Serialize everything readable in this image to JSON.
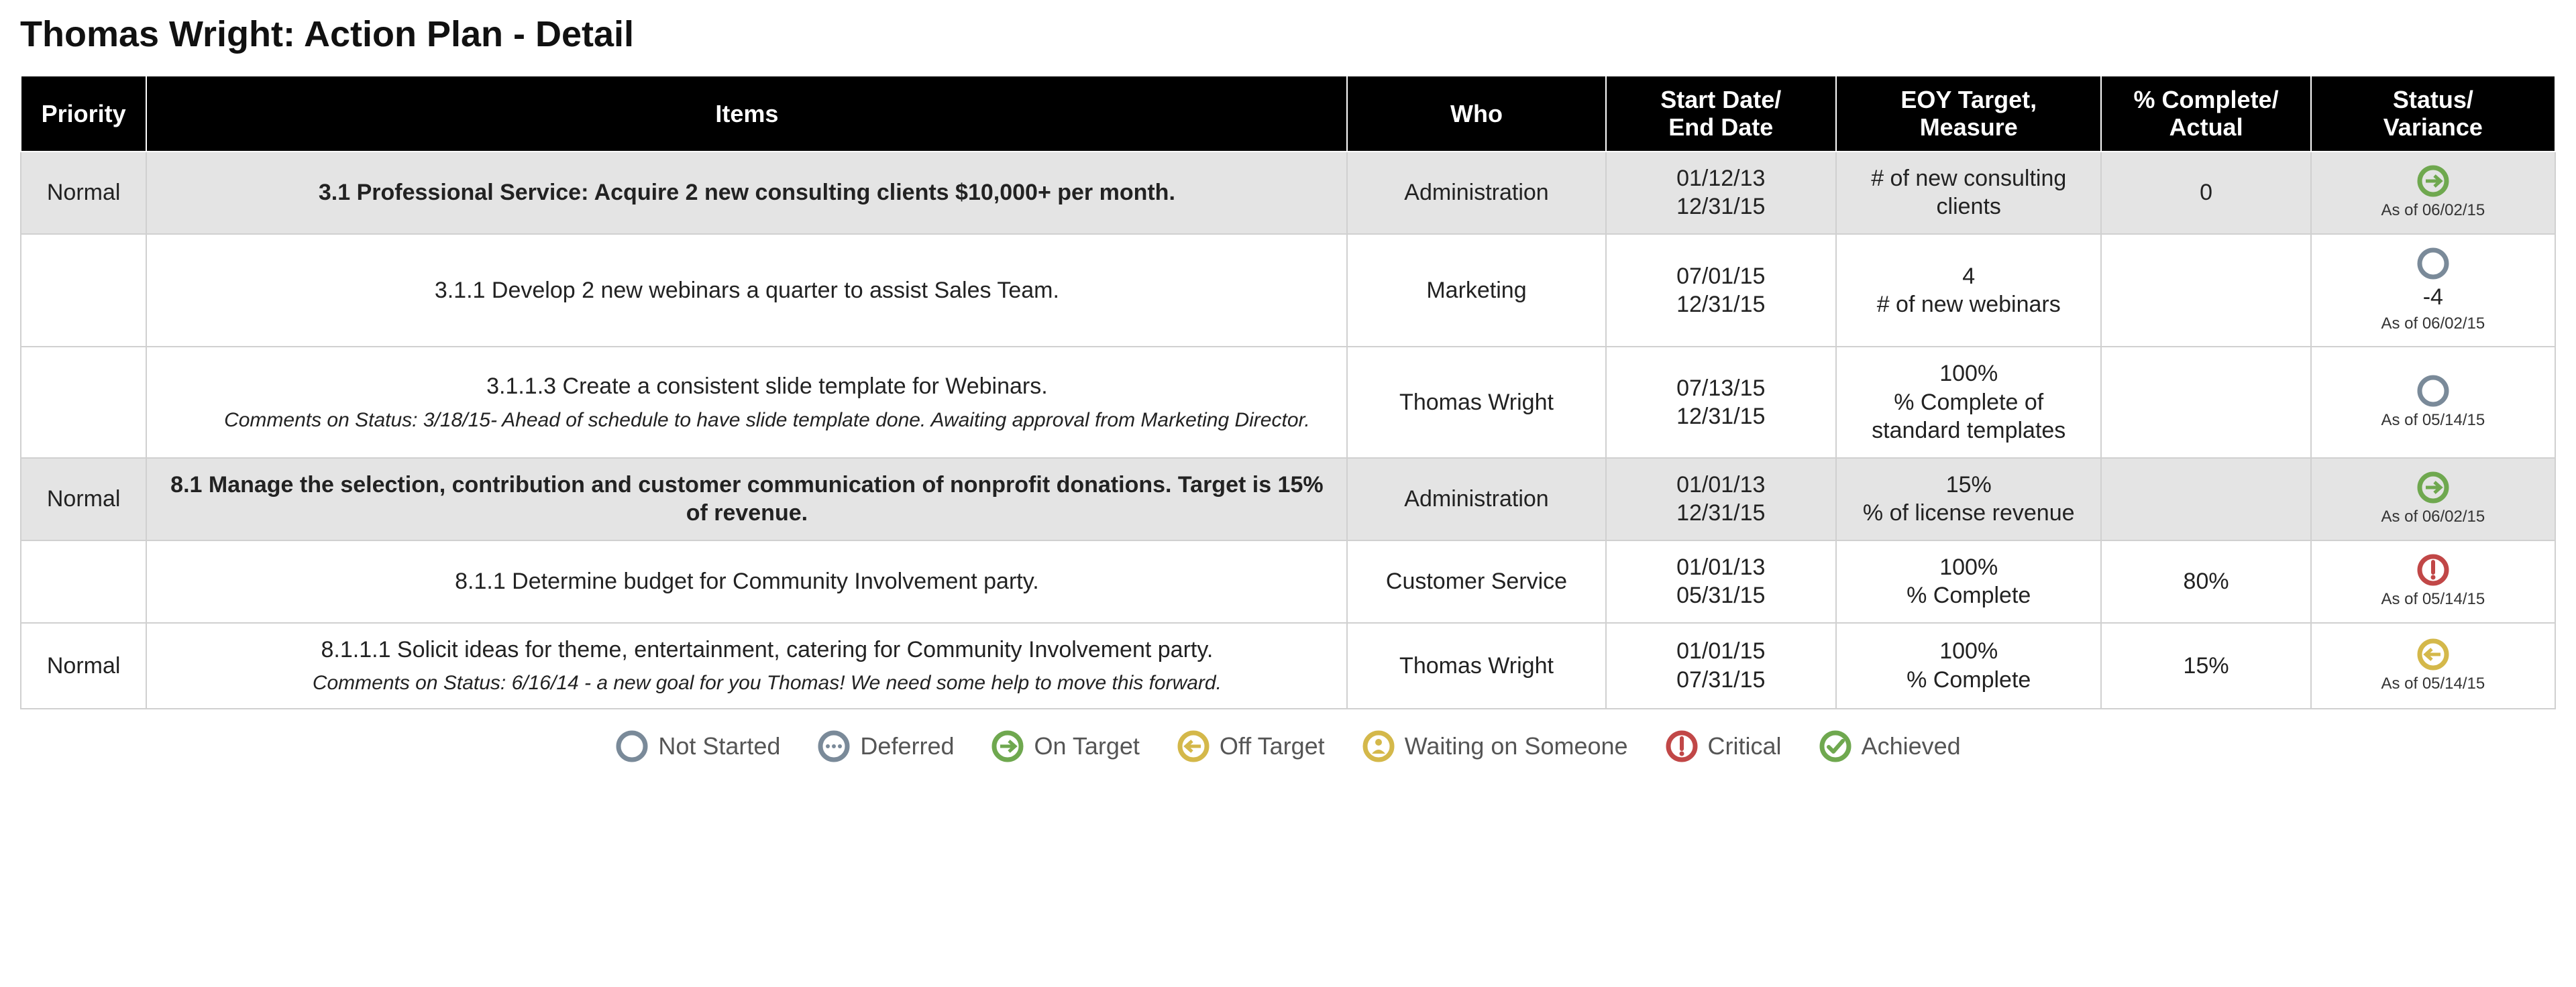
{
  "title": "Thomas Wright: Action Plan - Detail",
  "columns": {
    "priority": "Priority",
    "items": "Items",
    "who": "Who",
    "dates": "Start Date/\nEnd Date",
    "eoy": "EOY Target,\nMeasure",
    "complete": "% Complete/\nActual",
    "status": "Status/\nVariance"
  },
  "rows": [
    {
      "priority": "Normal",
      "shaded": true,
      "item_bold": true,
      "indent": 0,
      "item_text": "3.1 Professional Service: Acquire 2 new consulting clients $10,000+ per month.",
      "comment": "",
      "who": "Administration",
      "start_date": "01/12/13",
      "end_date": "12/31/15",
      "eoy_top": "",
      "eoy_bottom": "# of new consulting clients",
      "complete": "0",
      "status_icon": "on-target",
      "variance": "",
      "asof": "As of 06/02/15"
    },
    {
      "priority": "",
      "shaded": false,
      "item_bold": false,
      "indent": 0,
      "item_text": "3.1.1 Develop 2 new webinars a quarter to assist Sales Team.",
      "comment": "",
      "who": "Marketing",
      "start_date": "07/01/15",
      "end_date": "12/31/15",
      "eoy_top": "4",
      "eoy_bottom": "# of new webinars",
      "complete": "",
      "status_icon": "not-started",
      "variance": "-4",
      "asof": "As of 06/02/15"
    },
    {
      "priority": "",
      "shaded": false,
      "item_bold": false,
      "indent": 2,
      "item_text": "3.1.1.3 Create a consistent slide template for Webinars.",
      "comment": "Comments on Status: 3/18/15- Ahead of schedule to have slide template done. Awaiting approval from Marketing Director.",
      "who": "Thomas Wright",
      "start_date": "07/13/15",
      "end_date": "12/31/15",
      "eoy_top": "100%",
      "eoy_bottom": "% Complete of standard templates",
      "complete": "",
      "status_icon": "not-started",
      "variance": "",
      "asof": "As of 05/14/15"
    },
    {
      "priority": "Normal",
      "shaded": true,
      "item_bold": true,
      "indent": 0,
      "item_text": "8.1 Manage the selection, contribution and customer communication of nonprofit donations. Target is 15% of revenue.",
      "comment": "",
      "who": "Administration",
      "start_date": "01/01/13",
      "end_date": "12/31/15",
      "eoy_top": "15%",
      "eoy_bottom": "% of license revenue",
      "complete": "",
      "status_icon": "on-target",
      "variance": "",
      "asof": "As of 06/02/15"
    },
    {
      "priority": "",
      "shaded": false,
      "item_bold": false,
      "indent": 0,
      "item_text": "8.1.1 Determine budget for Community Involvement party.",
      "comment": "",
      "who": "Customer Service",
      "start_date": "01/01/13",
      "end_date": "05/31/15",
      "eoy_top": "100%",
      "eoy_bottom": "% Complete",
      "complete": "80%",
      "status_icon": "critical",
      "variance": "",
      "asof": "As of 05/14/15"
    },
    {
      "priority": "Normal",
      "shaded": false,
      "item_bold": false,
      "indent": 2,
      "item_text": "8.1.1.1 Solicit ideas for theme, entertainment, catering for Community Involvement party.",
      "comment": "Comments on Status: 6/16/14 - a new goal for you Thomas! We need some help to move this forward.",
      "who": "Thomas Wright",
      "start_date": "01/01/15",
      "end_date": "07/31/15",
      "eoy_top": "100%",
      "eoy_bottom": "% Complete",
      "complete": "15%",
      "status_icon": "off-target",
      "variance": "",
      "asof": "As of 05/14/15"
    }
  ],
  "legend": [
    {
      "icon": "not-started",
      "label": "Not Started"
    },
    {
      "icon": "deferred",
      "label": "Deferred"
    },
    {
      "icon": "on-target",
      "label": "On Target"
    },
    {
      "icon": "off-target",
      "label": "Off Target"
    },
    {
      "icon": "waiting",
      "label": "Waiting on Someone"
    },
    {
      "icon": "critical",
      "label": "Critical"
    },
    {
      "icon": "achieved",
      "label": "Achieved"
    }
  ],
  "colors": {
    "not_started": "#7a8a99",
    "deferred": "#7a8a99",
    "on_target": "#6fa84f",
    "off_target": "#d4b84a",
    "waiting": "#d4b84a",
    "critical": "#c14747",
    "achieved": "#6fa84f",
    "row_shade": "#e4e4e4",
    "header_bg": "#000000",
    "border": "#d0d0d0"
  }
}
